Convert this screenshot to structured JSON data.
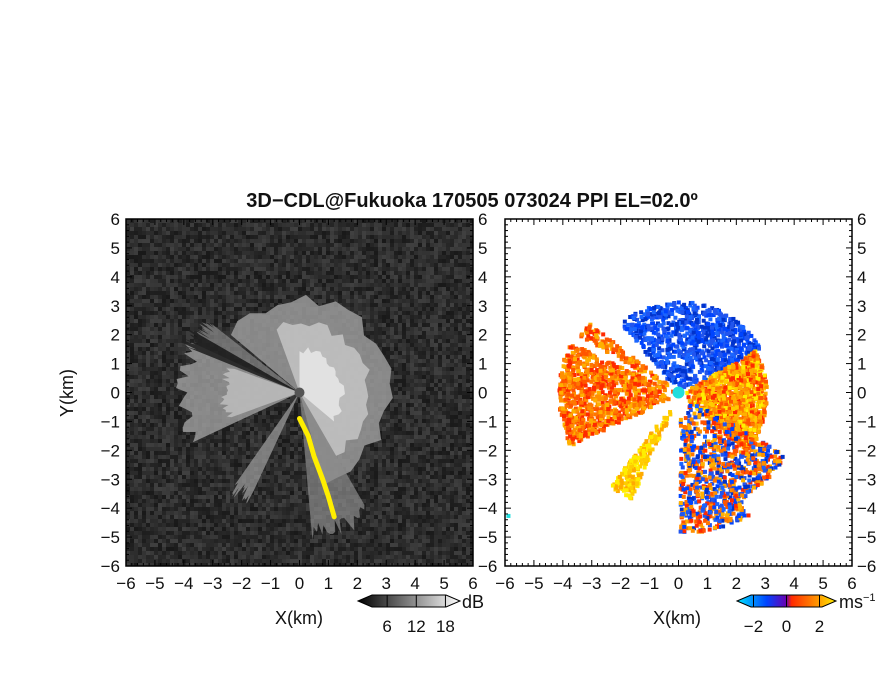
{
  "title": "3D−CDL@Fukuoka 170505 073024 PPI EL=02.0º",
  "chart_data": [
    {
      "type": "heatmap",
      "panel": "left",
      "title": "",
      "xlabel": "X(km)",
      "ylabel": "Y(km)",
      "xlim": [
        -6,
        6
      ],
      "ylim": [
        -6,
        6
      ],
      "xticks": [
        "−6",
        "−5",
        "−4",
        "−3",
        "−2",
        "−1",
        "0",
        "1",
        "2",
        "3",
        "4",
        "5",
        "6"
      ],
      "yticks": [
        "6",
        "5",
        "4",
        "3",
        "2",
        "1",
        "0",
        "−1",
        "−2",
        "−3",
        "−4",
        "−5",
        "−6"
      ],
      "colormap": {
        "name": "grayscale",
        "unit": "dB",
        "ticks": [
          "6",
          "12",
          "18"
        ],
        "tick_values": [
          6,
          12,
          18
        ],
        "range": [
          0,
          21
        ]
      },
      "highlight_color": "#ffee00",
      "background_color": "#2a2a2a"
    },
    {
      "type": "heatmap",
      "panel": "right",
      "title": "",
      "xlabel": "X(km)",
      "ylabel": "",
      "xlim": [
        -6,
        6
      ],
      "ylim": [
        -6,
        6
      ],
      "xticks": [
        "−6",
        "−5",
        "−4",
        "−3",
        "−2",
        "−1",
        "0",
        "1",
        "2",
        "3",
        "4",
        "5",
        "6"
      ],
      "yticks": [
        "6",
        "5",
        "4",
        "3",
        "2",
        "1",
        "0",
        "−1",
        "−2",
        "−3",
        "−4",
        "−5",
        "−6"
      ],
      "colormap": {
        "name": "diverging blue-red-yellow",
        "unit": "ms",
        "unit_exponent": "−1",
        "ticks": [
          "−2",
          "0",
          "2"
        ],
        "tick_values": [
          -2,
          0,
          2
        ],
        "range": [
          -3,
          3
        ],
        "colors": [
          "#00e5ff",
          "#0044ff",
          "#ff2a00",
          "#ffee00"
        ]
      },
      "radar_marker_color": "#22dddd",
      "background_color": "#ffffff"
    }
  ]
}
